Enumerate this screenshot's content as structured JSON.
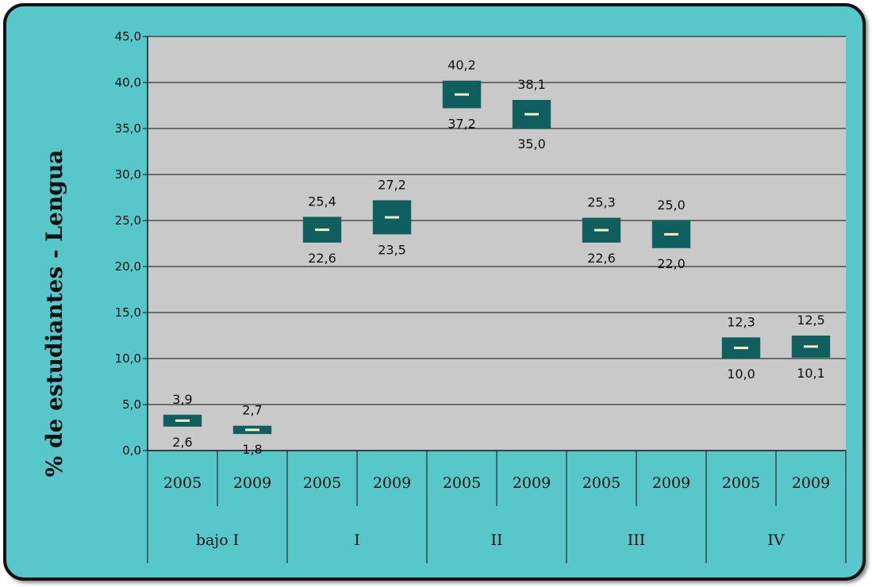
{
  "chart_data": {
    "type": "floating-bar",
    "ylabel": "% de estudiantes - Lengua",
    "ylim": [
      0,
      45
    ],
    "yticks": [
      "0,0",
      "5,0",
      "10,0",
      "15,0",
      "20,0",
      "25,0",
      "30,0",
      "35,0",
      "40,0",
      "45,0"
    ],
    "grid": true,
    "colors": {
      "box": "#0f5f5f",
      "mid": "#f4f1c8",
      "plot_bg": "#c9c9c9",
      "frame": "#58c7c9"
    },
    "groups": [
      {
        "name": "bajo I",
        "bars": [
          {
            "year": "2005",
            "low": 2.6,
            "high": 3.9,
            "low_label": "2,6",
            "high_label": "3,9"
          },
          {
            "year": "2009",
            "low": 1.8,
            "high": 2.7,
            "low_label": "1,8",
            "high_label": "2,7"
          }
        ]
      },
      {
        "name": "I",
        "bars": [
          {
            "year": "2005",
            "low": 22.6,
            "high": 25.4,
            "low_label": "22,6",
            "high_label": "25,4"
          },
          {
            "year": "2009",
            "low": 23.5,
            "high": 27.2,
            "low_label": "23,5",
            "high_label": "27,2"
          }
        ]
      },
      {
        "name": "II",
        "bars": [
          {
            "year": "2005",
            "low": 37.2,
            "high": 40.2,
            "low_label": "37,2",
            "high_label": "40,2"
          },
          {
            "year": "2009",
            "low": 35.0,
            "high": 38.1,
            "low_label": "35,0",
            "high_label": "38,1"
          }
        ]
      },
      {
        "name": "III",
        "bars": [
          {
            "year": "2005",
            "low": 22.6,
            "high": 25.3,
            "low_label": "22,6",
            "high_label": "25,3"
          },
          {
            "year": "2009",
            "low": 22.0,
            "high": 25.0,
            "low_label": "22,0",
            "high_label": "25,0"
          }
        ]
      },
      {
        "name": "IV",
        "bars": [
          {
            "year": "2005",
            "low": 10.0,
            "high": 12.3,
            "low_label": "10,0",
            "high_label": "12,3"
          },
          {
            "year": "2009",
            "low": 10.1,
            "high": 12.5,
            "low_label": "10,1",
            "high_label": "12,5"
          }
        ]
      }
    ]
  }
}
